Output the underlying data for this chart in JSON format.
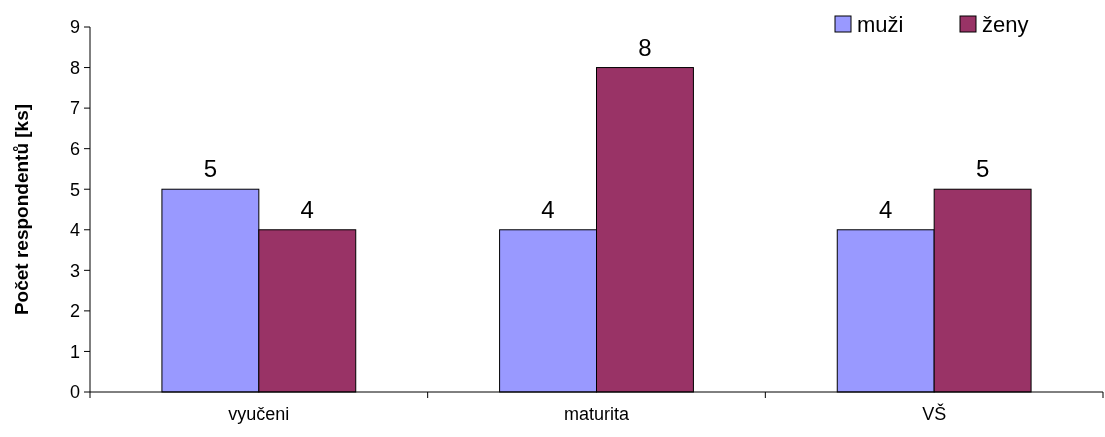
{
  "chart_data": {
    "type": "bar",
    "ylabel": "Počet respondentů [ks]",
    "categories": [
      "vyučeni",
      "maturita",
      "VŠ"
    ],
    "series": [
      {
        "name": "muži",
        "color": "#9999ff",
        "values": [
          5,
          4,
          4
        ]
      },
      {
        "name": "ženy",
        "color": "#993366",
        "values": [
          4,
          8,
          5
        ]
      }
    ],
    "ylim": [
      0,
      9
    ],
    "yticks": [
      0,
      1,
      2,
      3,
      4,
      5,
      6,
      7,
      8,
      9
    ],
    "data_labels": true,
    "legend": "top right",
    "grid": false
  }
}
